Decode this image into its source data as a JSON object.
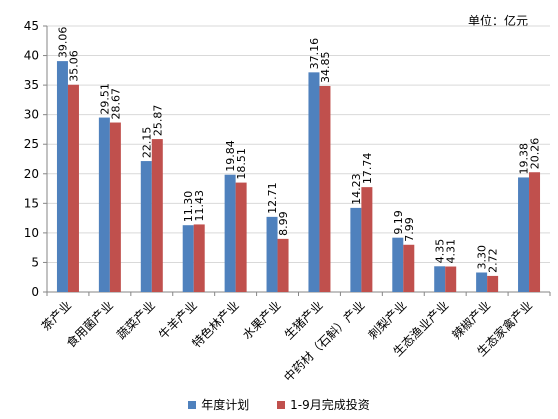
{
  "unit_label": "单位：亿元",
  "colors": {
    "plan": "#4f81bd",
    "actual": "#c0504d",
    "axis": "#868686",
    "grid": "#d9d9d9"
  },
  "chart_data": {
    "type": "bar",
    "ylim": [
      0,
      45
    ],
    "yticks": [
      0,
      5,
      10,
      15,
      20,
      25,
      30,
      35,
      40,
      45
    ],
    "grid": true,
    "legend_position": "bottom",
    "categories": [
      "茶产业",
      "食用菌产业",
      "蔬菜产业",
      "牛羊产业",
      "特色林产业",
      "水果产业",
      "生猪产业",
      "中药材（石斛）产业",
      "刺梨产业",
      "生态渔业产业",
      "辣椒产业",
      "生态家禽产业"
    ],
    "series": [
      {
        "name": "年度计划",
        "values": [
          39.06,
          29.51,
          22.15,
          11.3,
          19.84,
          12.71,
          37.16,
          14.23,
          9.19,
          4.35,
          3.3,
          19.38
        ],
        "labels": [
          "39.06",
          "29.51",
          "22.15",
          "11.30",
          "19.84",
          "12.71",
          "37.16",
          "14.23",
          "9.19",
          "4.35",
          "3.30",
          "19.38"
        ]
      },
      {
        "name": "1-9月完成投资",
        "values": [
          35.06,
          28.67,
          25.87,
          11.43,
          18.51,
          8.99,
          34.85,
          17.74,
          7.99,
          4.31,
          2.72,
          20.26
        ],
        "labels": [
          "35.06",
          "28.67",
          "25.87",
          "11.43",
          "18.51",
          "8.99",
          "34.85",
          "17.74",
          "7.99",
          "4.31",
          "2.72",
          "20.26"
        ]
      }
    ]
  }
}
